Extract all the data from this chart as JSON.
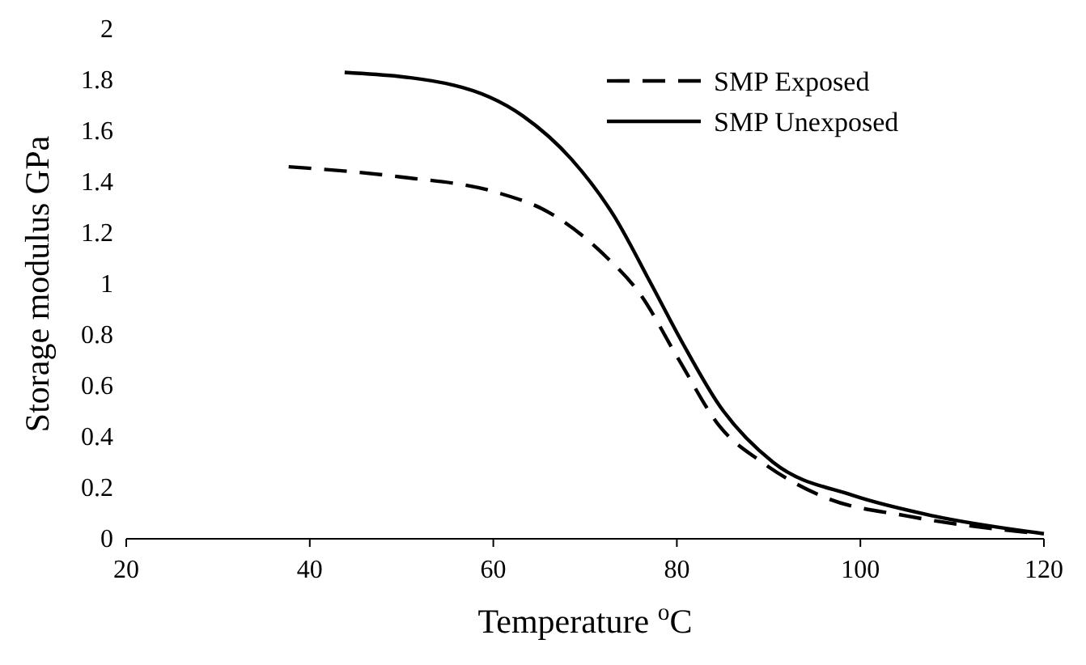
{
  "chart_data": {
    "type": "line",
    "xlabel": "Temperature $^{o}$C",
    "ylabel": "Storage modulus GPa",
    "xlim": [
      20,
      120
    ],
    "xticks": [
      20,
      40,
      60,
      80,
      100,
      120
    ],
    "ylim": [
      0,
      2
    ],
    "yticks": [
      0,
      0.2,
      0.4,
      0.6,
      0.8,
      1,
      1.2,
      1.4,
      1.6,
      1.8,
      2
    ],
    "grid": false,
    "legend": "top right",
    "series": [
      {
        "name": "SMP Exposed",
        "color": "#000000",
        "line_style": "dashed",
        "x": [
          37.7,
          49.9,
          60.3,
          66.1,
          71.9,
          76.0,
          80.1,
          84.7,
          89.3,
          96.3,
          105,
          119.5
        ],
        "values": [
          1.46,
          1.42,
          1.36,
          1.28,
          1.12,
          0.96,
          0.71,
          0.44,
          0.3,
          0.16,
          0.09,
          0.02
        ]
      },
      {
        "name": "SMP Unexposed",
        "color": "#000000",
        "line_style": "solid",
        "x": [
          43.8,
          55.7,
          63.2,
          68.5,
          73.1,
          77.2,
          80.6,
          84.7,
          90.5,
          99.2,
          107.9,
          120
        ],
        "values": [
          1.83,
          1.78,
          1.66,
          1.49,
          1.27,
          1.0,
          0.77,
          0.52,
          0.3,
          0.17,
          0.09,
          0.02
        ]
      }
    ]
  }
}
